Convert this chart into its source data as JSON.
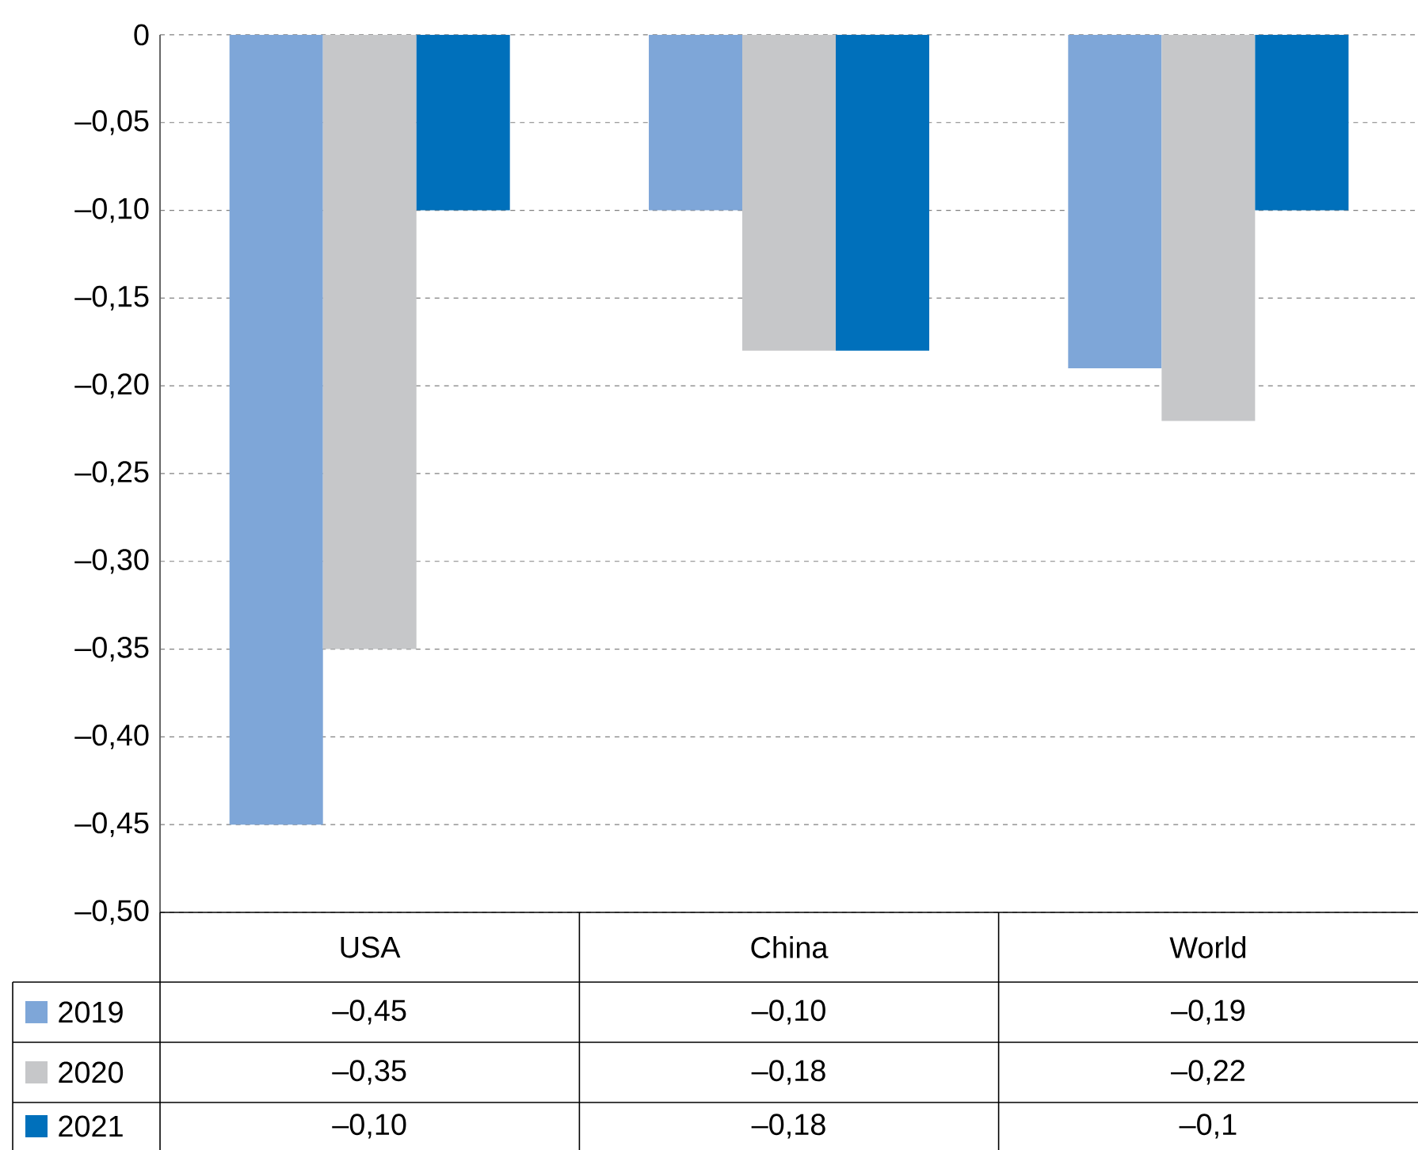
{
  "chart_data": {
    "type": "bar",
    "categories": [
      "USA",
      "China",
      "World"
    ],
    "series": [
      {
        "name": "2019",
        "color": "#7ea6d8",
        "values": [
          -0.45,
          -0.1,
          -0.19
        ],
        "value_labels": [
          "–0,45",
          "–0,10",
          "–0,19"
        ]
      },
      {
        "name": "2020",
        "color": "#c6c7c9",
        "values": [
          -0.35,
          -0.18,
          -0.22
        ],
        "value_labels": [
          "–0,35",
          "–0,18",
          "–0,22"
        ]
      },
      {
        "name": "2021",
        "color": "#0070bb",
        "values": [
          -0.1,
          -0.18,
          -0.1
        ],
        "value_labels": [
          "–0,10",
          "–0,18",
          "–0,1"
        ]
      }
    ],
    "ylim": [
      -0.5,
      0
    ],
    "yticks": [
      {
        "value": 0,
        "label": "0"
      },
      {
        "value": -0.05,
        "label": "–0,05"
      },
      {
        "value": -0.1,
        "label": "–0,10"
      },
      {
        "value": -0.15,
        "label": "–0,15"
      },
      {
        "value": -0.2,
        "label": "–0,20"
      },
      {
        "value": -0.25,
        "label": "–0,25"
      },
      {
        "value": -0.3,
        "label": "–0,30"
      },
      {
        "value": -0.35,
        "label": "–0,35"
      },
      {
        "value": -0.4,
        "label": "–0,40"
      },
      {
        "value": -0.45,
        "label": "–0,45"
      },
      {
        "value": -0.5,
        "label": "–0,50"
      }
    ],
    "grid": "y",
    "legend": "bottom"
  }
}
